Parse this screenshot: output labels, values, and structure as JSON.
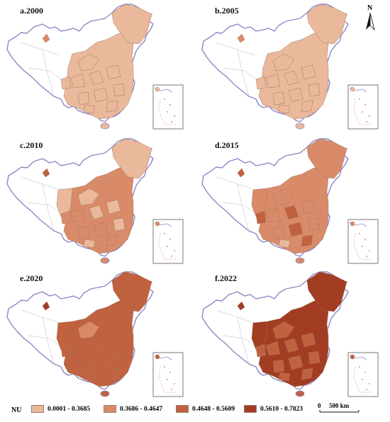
{
  "panels": [
    {
      "title": "a.2000",
      "level": 0
    },
    {
      "title": "b.2005",
      "level": 1
    },
    {
      "title": "c.2010",
      "level": 2
    },
    {
      "title": "d.2015",
      "level": 3
    },
    {
      "title": "e.2020",
      "level": 4
    },
    {
      "title": "f.2022",
      "level": 5
    }
  ],
  "legend": {
    "title": "NU",
    "classes": [
      {
        "label": "0.0001 - 0.3685",
        "color": "#eab99b"
      },
      {
        "label": "0.3686 - 0.4647",
        "color": "#d98b69"
      },
      {
        "label": "0.4648 - 0.5609",
        "color": "#c0623f"
      },
      {
        "label": "0.5610 - 0.7823",
        "color": "#a23c22"
      }
    ]
  },
  "north_arrow": {
    "label": "N"
  },
  "scale_bar": {
    "zero": "0",
    "label": "500 km"
  },
  "colors": {
    "boundary": "#8f86c4",
    "empty": "#ffffff",
    "region_stroke": "#a47562"
  }
}
